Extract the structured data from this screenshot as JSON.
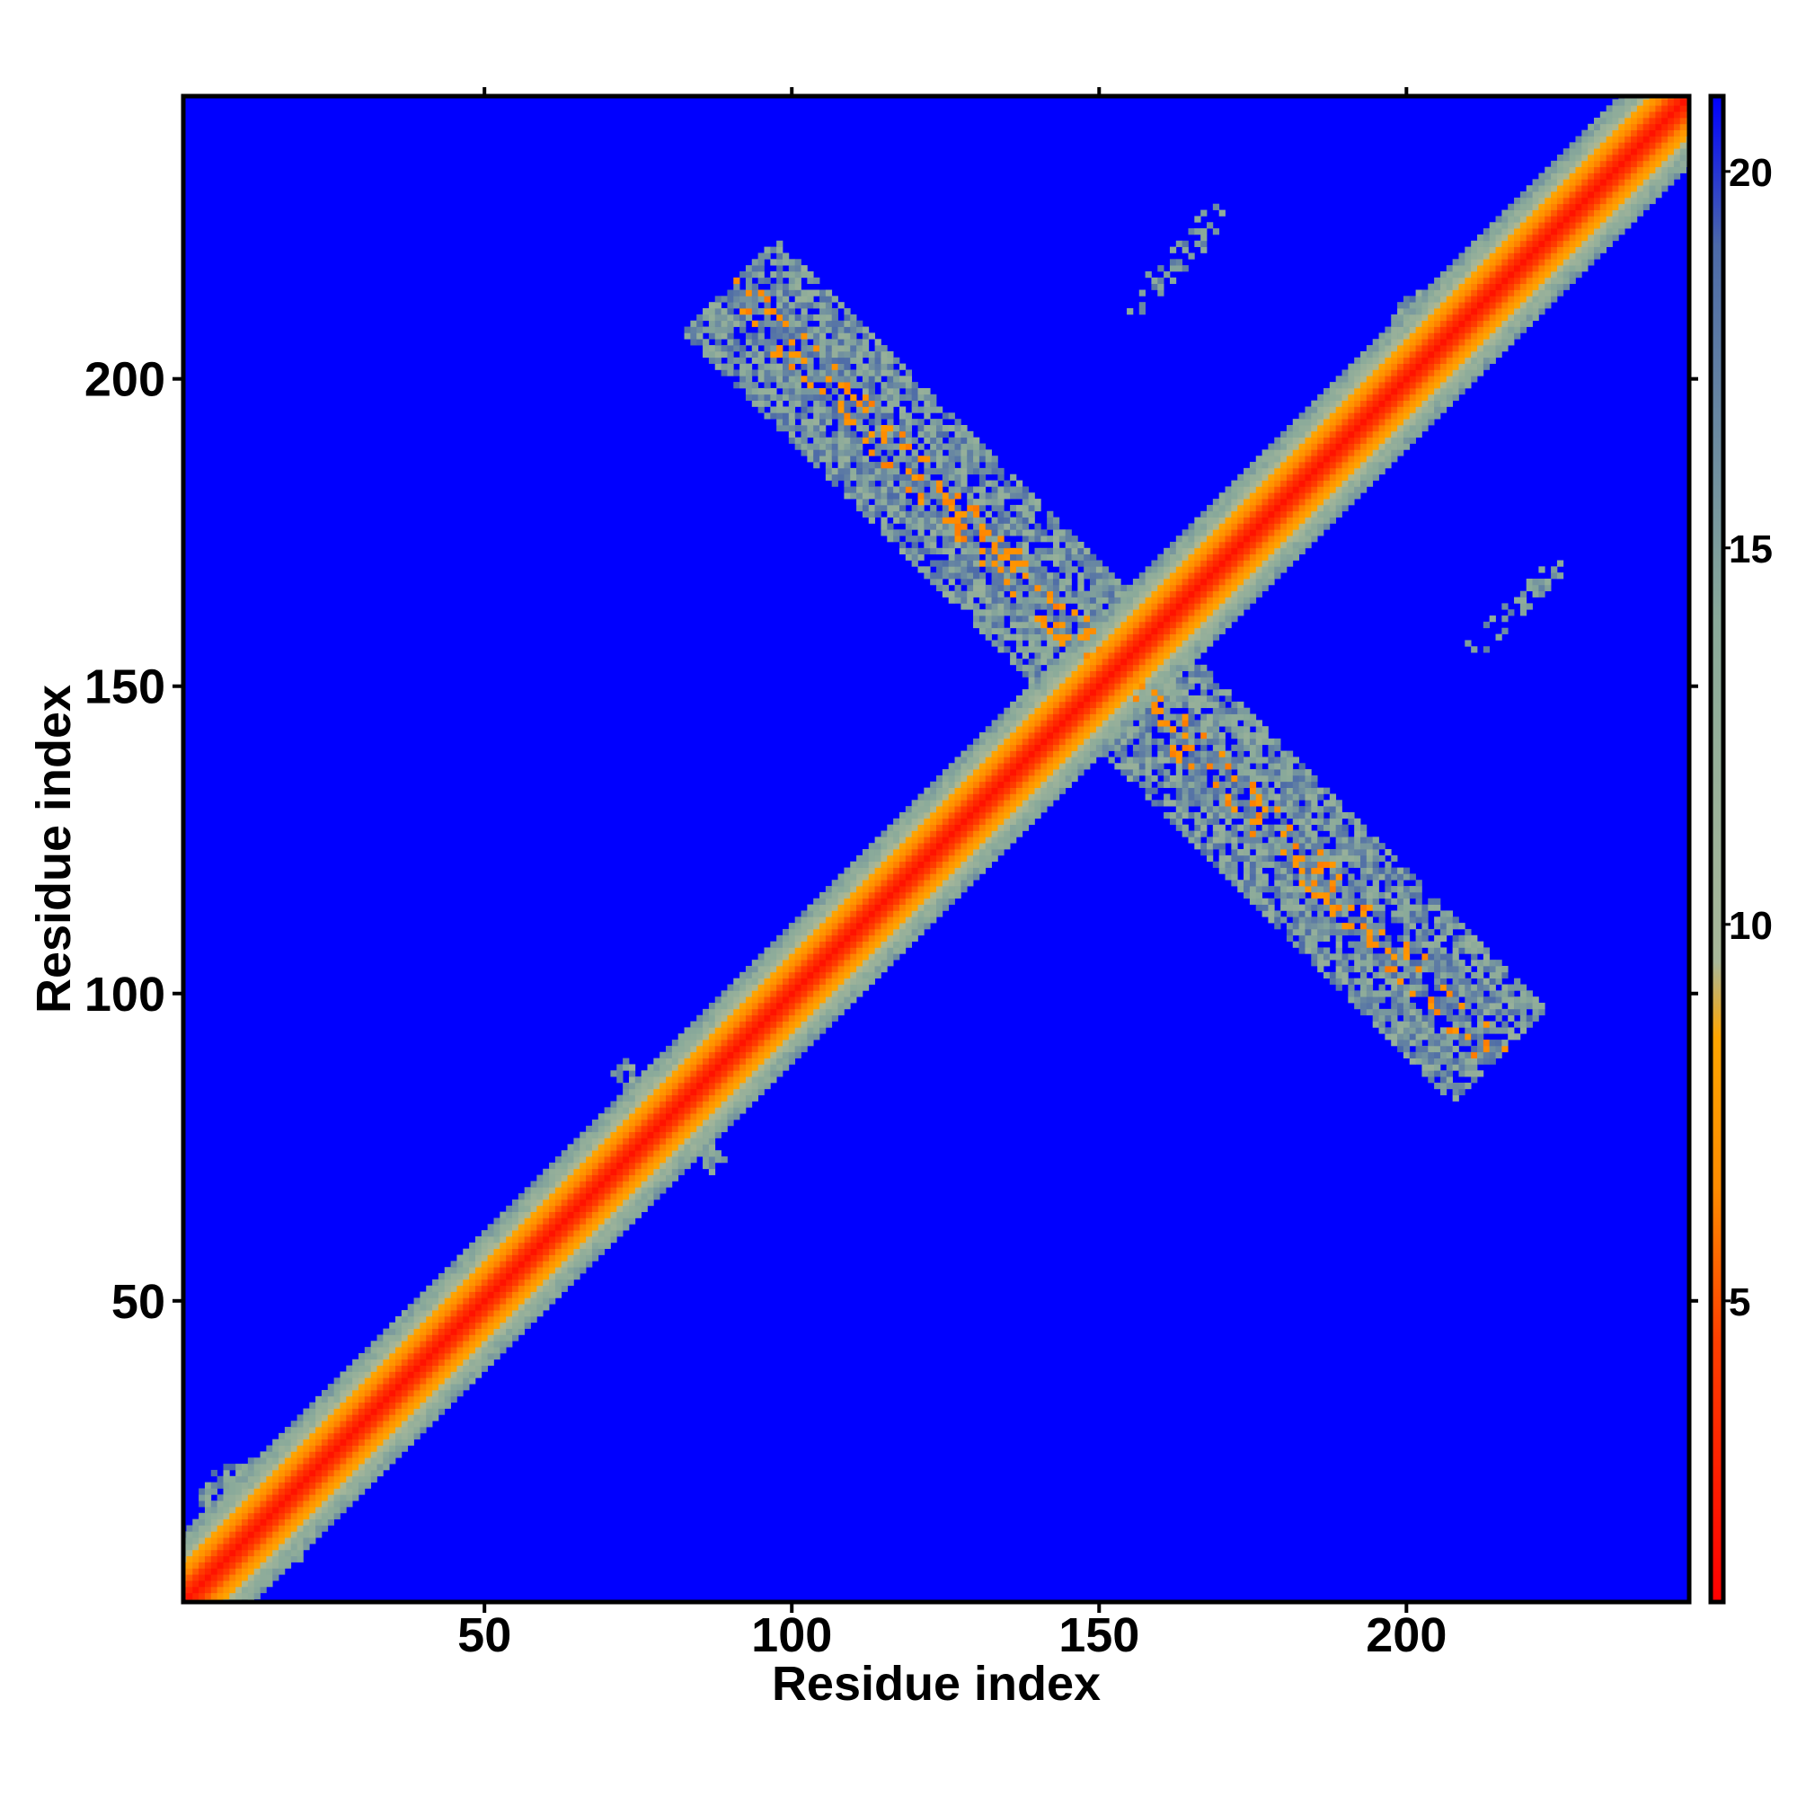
{
  "chart_data": {
    "type": "heatmap",
    "title": "",
    "xlabel": "Residue index",
    "ylabel": "Residue index",
    "xlim": [
      1,
      246
    ],
    "ylim": [
      1,
      246
    ],
    "xticks": [
      50,
      100,
      150,
      200
    ],
    "yticks": [
      50,
      100,
      150,
      200
    ],
    "colorbar": {
      "range": [
        1,
        21
      ],
      "ticks": [
        5,
        10,
        15,
        20
      ],
      "colors": [
        {
          "value": 1,
          "color": "#ff0000"
        },
        {
          "value": 4.5,
          "color": "#ff4000"
        },
        {
          "value": 6.5,
          "color": "#ff8c00"
        },
        {
          "value": 8.5,
          "color": "#ffa500"
        },
        {
          "value": 9.5,
          "color": "#a9b89a"
        },
        {
          "value": 14,
          "color": "#8aaa9a"
        },
        {
          "value": 19,
          "color": "#4c6aa8"
        },
        {
          "value": 21,
          "color": "#0000ff"
        }
      ]
    },
    "background_value": 21,
    "background_color": "#0000ff",
    "features": [
      {
        "kind": "diagonal band",
        "from": [
          1,
          1
        ],
        "to": [
          246,
          246
        ],
        "halfwidth_residues": 8,
        "core_value": 2
      },
      {
        "kind": "anti-diagonal contact region",
        "from": [
          90,
          215
        ],
        "to": [
          215,
          90
        ],
        "center": [
          150,
          150
        ],
        "min_value": 6
      },
      {
        "kind": "cross contact",
        "center": [
          80,
          80
        ],
        "extent_residues": 12,
        "min_value": 7
      },
      {
        "kind": "contact cluster",
        "center": [
          100,
          98
        ],
        "extent_residues": 6
      },
      {
        "kind": "contact cluster",
        "center": [
          13,
          15
        ],
        "extent_residues": 10
      },
      {
        "kind": "contact cluster",
        "center": [
          205,
          207
        ],
        "extent_residues": 8
      },
      {
        "kind": "contact cluster",
        "center": [
          178,
          180
        ],
        "extent_residues": 7
      },
      {
        "kind": "sparse contacts",
        "x_range": [
          155,
          170
        ],
        "y_range": [
          210,
          228
        ]
      },
      {
        "kind": "sparse contacts",
        "x_range": [
          210,
          225
        ],
        "y_range": [
          155,
          170
        ]
      }
    ]
  }
}
